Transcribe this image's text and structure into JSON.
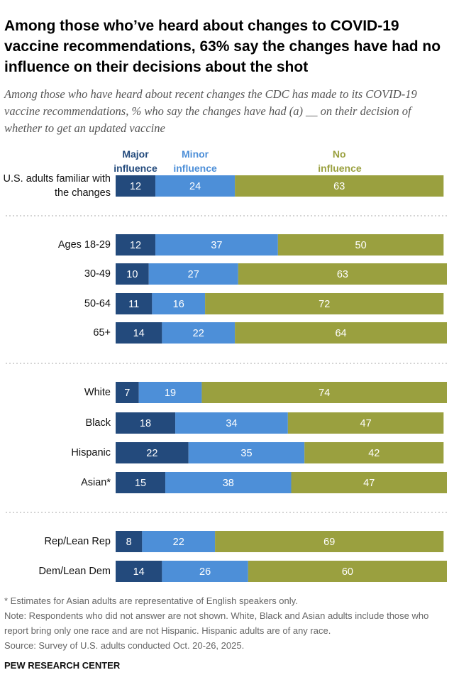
{
  "chart_data": {
    "type": "bar",
    "orientation": "horizontal",
    "stacked": true,
    "title": "Among those who’ve heard about changes to COVID-19 vaccine recommendations, 63% say the changes have had no influence on their decisions about the shot",
    "subtitle": "Among those who have heard about recent changes the CDC has made to its COVID-19 vaccine recommendations, % who say the changes have had (a) __ on their decision of whether to get an updated vaccine",
    "categories": [
      "U.S. adults familiar with the changes",
      "Ages 18-29",
      "30-49",
      "50-64",
      "65+",
      "White",
      "Black",
      "Hispanic",
      "Asian*",
      "Rep/Lean Rep",
      "Dem/Lean Dem"
    ],
    "series": [
      {
        "name": "Major influence",
        "color": "#234a7c",
        "values": [
          12,
          12,
          10,
          11,
          14,
          7,
          18,
          22,
          15,
          8,
          14
        ]
      },
      {
        "name": "Minor influence",
        "color": "#4d8fd8",
        "values": [
          24,
          37,
          27,
          16,
          22,
          19,
          34,
          35,
          38,
          22,
          26
        ]
      },
      {
        "name": "No influence",
        "color": "#9aa03f",
        "values": [
          63,
          50,
          63,
          72,
          64,
          74,
          47,
          42,
          47,
          69,
          60
        ]
      }
    ],
    "xlim": [
      0,
      100
    ],
    "footnote": "* Estimates for Asian adults are representative of English speakers only.",
    "note": "Note: Respondents who did not answer are not shown. White, Black and Asian adults include those who report bring only one race and are not Hispanic. Hispanic adults are of any race.",
    "source": "Source: Survey of U.S. adults conducted Oct. 20-26, 2025.",
    "credit": "PEW RESEARCH CENTER"
  }
}
